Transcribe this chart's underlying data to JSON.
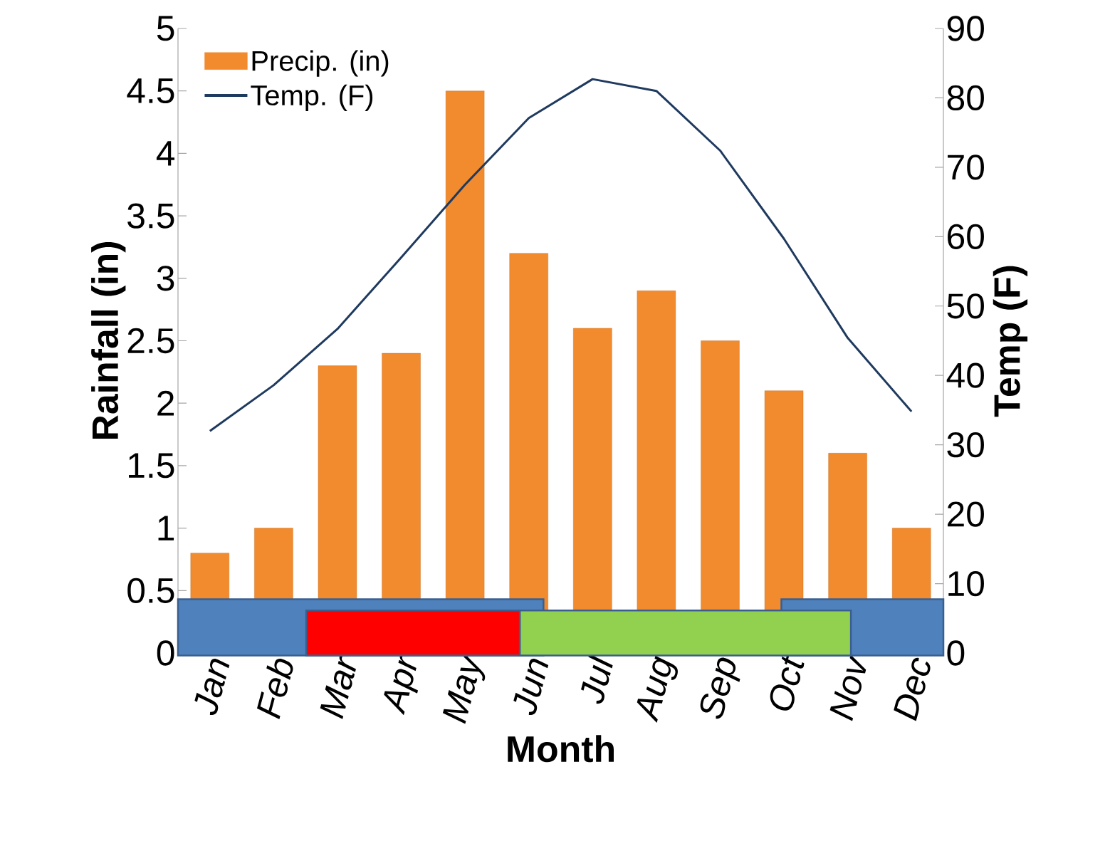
{
  "chart_data": {
    "type": "bar",
    "xlabel": "Month",
    "ylabel": "Rainfall (in)",
    "y2label": "Temp (F)",
    "categories": [
      "Jan",
      "Feb",
      "Mar",
      "Apr",
      "May",
      "Jun",
      "Jul",
      "Aug",
      "Sep",
      "Oct",
      "Nov",
      "Dec"
    ],
    "series": [
      {
        "name": "Precip. (in)",
        "color": "#f28a2e",
        "values": [
          0.8,
          1.0,
          2.3,
          2.4,
          4.5,
          3.2,
          2.6,
          2.9,
          2.5,
          2.1,
          1.6,
          1.0
        ]
      },
      {
        "name": "Temp. (F)",
        "type": "line",
        "axis": "y2",
        "color": "#1f3a5f",
        "values": [
          32.0,
          38.6,
          46.7,
          57.0,
          67.5,
          77.1,
          82.7,
          81.0,
          72.4,
          59.7,
          45.4,
          34.8
        ]
      }
    ],
    "ylim": [
      0,
      5
    ],
    "yticks": [
      0,
      0.5,
      1,
      1.5,
      2,
      2.5,
      3,
      3.5,
      4,
      4.5,
      5
    ],
    "y2lim": [
      0,
      90
    ],
    "y2ticks": [
      0,
      10,
      20,
      30,
      40,
      50,
      60,
      70,
      80,
      90
    ],
    "legend": "top left",
    "grid": false
  }
}
